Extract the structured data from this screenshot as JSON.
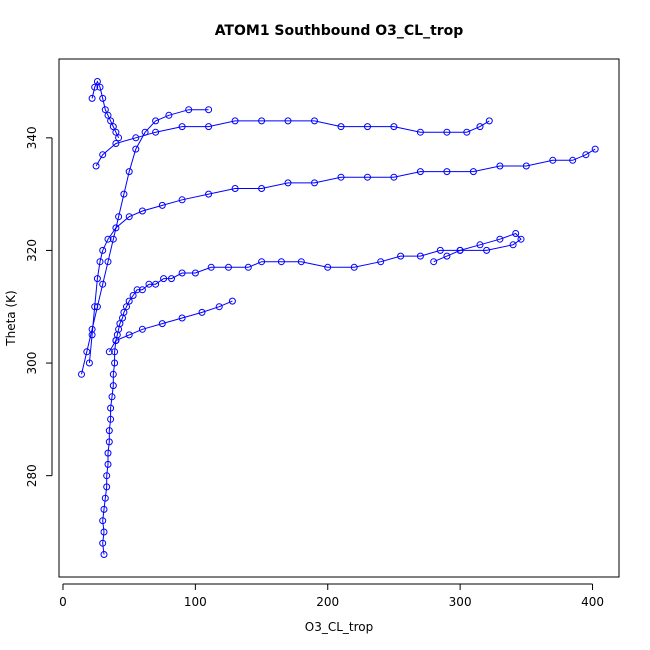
{
  "chart_data": {
    "type": "scatter",
    "title": "ATOM1 Southbound O3_CL_trop",
    "xlabel": "O3_CL_trop",
    "ylabel": "Theta (K)",
    "xlim": [
      -3,
      420
    ],
    "ylim": [
      262,
      354
    ],
    "x_ticks": [
      0,
      100,
      200,
      300,
      400
    ],
    "y_ticks": [
      280,
      300,
      320,
      340
    ],
    "marker": "open-circle",
    "connected": true,
    "color": "#0000ff",
    "grid": false,
    "legend": "none",
    "series": [
      {
        "x": [
          31,
          30,
          31,
          30,
          31,
          32,
          33,
          33,
          34,
          34,
          35,
          35,
          36,
          36,
          37,
          38,
          38,
          39,
          39,
          40,
          41,
          42,
          43,
          45,
          46,
          48,
          50,
          53,
          56,
          60,
          65,
          70,
          76,
          82,
          90,
          100,
          112,
          125,
          140,
          150,
          165,
          180,
          200,
          220,
          240,
          255,
          270,
          285,
          300,
          315,
          330,
          342,
          346,
          340,
          320,
          300,
          290,
          280
        ],
        "y": [
          266,
          268,
          270,
          272,
          274,
          276,
          278,
          280,
          282,
          284,
          286,
          288,
          290,
          292,
          294,
          296,
          298,
          300,
          302,
          304,
          305,
          306,
          307,
          308,
          309,
          310,
          311,
          312,
          313,
          313,
          314,
          314,
          315,
          315,
          316,
          316,
          317,
          317,
          317,
          318,
          318,
          318,
          317,
          317,
          318,
          319,
          319,
          320,
          320,
          321,
          322,
          323,
          322,
          321,
          320,
          320,
          319,
          318
        ]
      },
      {
        "x": [
          20,
          22,
          24,
          26,
          28,
          30,
          34,
          40,
          50,
          60,
          75,
          90,
          110,
          130,
          150,
          170,
          190,
          210,
          230,
          250,
          270,
          290,
          310,
          330,
          350,
          370,
          385,
          395,
          402
        ],
        "y": [
          300,
          305,
          310,
          315,
          318,
          320,
          322,
          324,
          326,
          327,
          328,
          329,
          330,
          331,
          331,
          332,
          332,
          333,
          333,
          333,
          334,
          334,
          334,
          335,
          335,
          336,
          336,
          337,
          338
        ]
      },
      {
        "x": [
          25,
          30,
          40,
          55,
          70,
          90,
          110,
          130,
          150,
          170,
          190,
          210,
          230,
          250,
          270,
          290,
          305,
          315,
          322
        ],
        "y": [
          335,
          337,
          339,
          340,
          341,
          342,
          342,
          343,
          343,
          343,
          343,
          342,
          342,
          342,
          341,
          341,
          341,
          342,
          343
        ]
      },
      {
        "x": [
          14,
          18,
          22,
          26,
          30,
          34,
          38,
          42,
          46,
          50,
          55,
          62,
          70,
          80,
          95,
          110
        ],
        "y": [
          298,
          302,
          306,
          310,
          314,
          318,
          322,
          326,
          330,
          334,
          338,
          341,
          343,
          344,
          345,
          345
        ]
      },
      {
        "x": [
          35,
          40,
          50,
          60,
          75,
          90,
          105,
          118,
          128
        ],
        "y": [
          302,
          304,
          305,
          306,
          307,
          308,
          309,
          310,
          311
        ]
      },
      {
        "x": [
          22,
          24,
          26,
          28,
          30,
          32,
          34,
          36,
          38,
          40,
          42
        ],
        "y": [
          347,
          349,
          350,
          349,
          347,
          345,
          344,
          343,
          342,
          341,
          340
        ]
      }
    ]
  }
}
